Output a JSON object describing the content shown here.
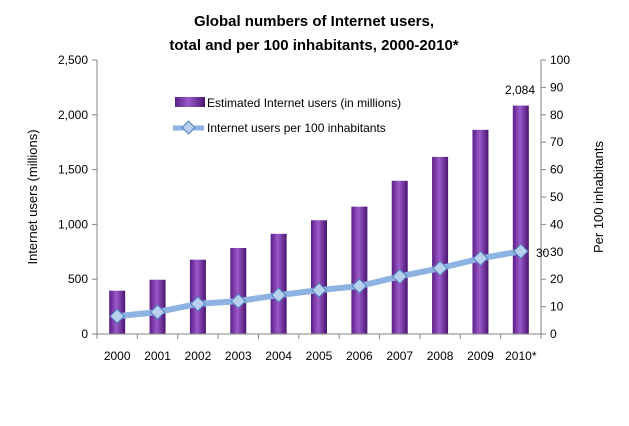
{
  "chart_data": {
    "type": "bar",
    "title_line1": "Global numbers of Internet users,",
    "title_line2": "total and per 100 inhabitants, 2000-2010*",
    "categories": [
      "2000",
      "2001",
      "2002",
      "2003",
      "2004",
      "2005",
      "2006",
      "2007",
      "2008",
      "2009",
      "2010*"
    ],
    "series": [
      {
        "name": "Estimated Internet users (in millions)",
        "type": "bar",
        "axis": "left",
        "color": "#7030a0",
        "values": [
          395,
          495,
          678,
          785,
          914,
          1038,
          1162,
          1398,
          1616,
          1863,
          2084
        ]
      },
      {
        "name": "Internet users per 100 inhabitants",
        "type": "line",
        "axis": "right",
        "color": "#8db3e2",
        "marker_color": "#b8d0ee",
        "values": [
          6.5,
          8.0,
          11.0,
          12.0,
          14.2,
          16.0,
          17.5,
          21.0,
          24.0,
          27.6,
          30.2
        ]
      }
    ],
    "left_axis": {
      "label": "Internet users (millions)",
      "min": 0,
      "max": 2500,
      "step": 500,
      "tick_labels": [
        "0",
        "500",
        "1,000",
        "1,500",
        "2,000",
        "2,500"
      ]
    },
    "right_axis": {
      "label": "Per 100 inhabitants",
      "min": 0,
      "max": 100,
      "step": 10,
      "tick_labels": [
        "0",
        "10",
        "20",
        "30",
        "40",
        "50",
        "60",
        "70",
        "80",
        "90",
        "100"
      ]
    },
    "annotations": {
      "last_bar_label": "2,084",
      "last_point_label": "30"
    },
    "grid": false,
    "legend_position": "top-left"
  }
}
